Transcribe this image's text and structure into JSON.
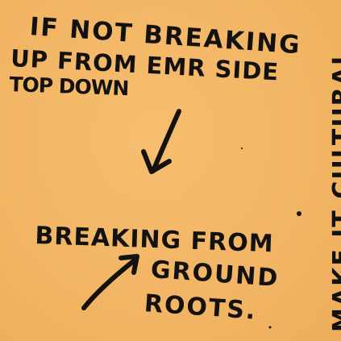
{
  "note": {
    "background_color": "#f2b86a",
    "ink_color": "#141210",
    "lines": {
      "line1": "IF NOT BREAKING",
      "line2": "UP FROM EMR SIDE",
      "line3": "TOP DOWN",
      "line4": "BREAKING FROM",
      "line5": "GROUND",
      "line6": "ROOTS.",
      "vertical": "MAKE IT CULTURAL"
    },
    "arrows": [
      "down-arrow",
      "up-right-arrow"
    ]
  }
}
